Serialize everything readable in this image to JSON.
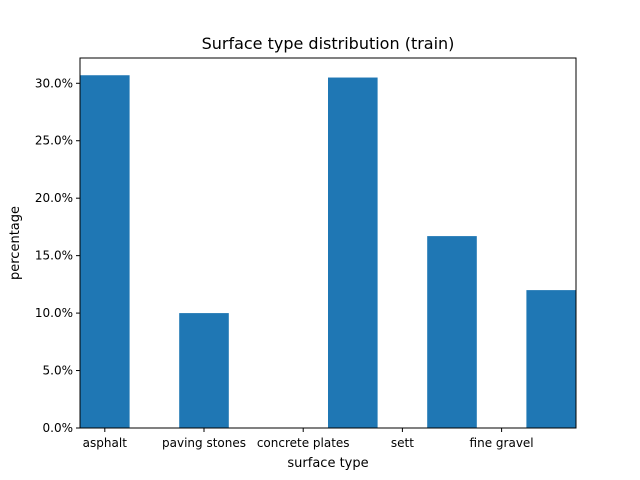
{
  "chart_data": {
    "type": "bar",
    "title": "Surface type distribution (train)",
    "xlabel": "surface type",
    "ylabel": "percentage",
    "bars": [
      {
        "label": "asphalt",
        "x": 0.5,
        "value": 30.7
      },
      {
        "label": "paving stones",
        "x": 1.5,
        "value": 10.0
      },
      {
        "label": "concrete plates",
        "x": 3.0,
        "value": 30.5
      },
      {
        "label": "sett",
        "x": 4.0,
        "value": 16.7
      },
      {
        "label": "fine gravel",
        "x": 5.0,
        "value": 12.0
      }
    ],
    "xticks": [
      {
        "label": "asphalt",
        "x": 0.5
      },
      {
        "label": "paving stones",
        "x": 1.5
      },
      {
        "label": "concrete plates",
        "x": 2.5
      },
      {
        "label": "sett",
        "x": 3.5
      },
      {
        "label": "fine gravel",
        "x": 4.5
      }
    ],
    "bar_width": 0.5,
    "xlim": [
      0.25,
      5.25
    ],
    "ylim": [
      0,
      32.2
    ],
    "yticks": [
      0,
      5,
      10,
      15,
      20,
      25,
      30
    ],
    "ytick_labels": [
      "0.0%",
      "5.0%",
      "10.0%",
      "15.0%",
      "20.0%",
      "25.0%",
      "30.0%"
    ],
    "grid": false,
    "legend": "none",
    "bar_color": "#1f77b4"
  }
}
